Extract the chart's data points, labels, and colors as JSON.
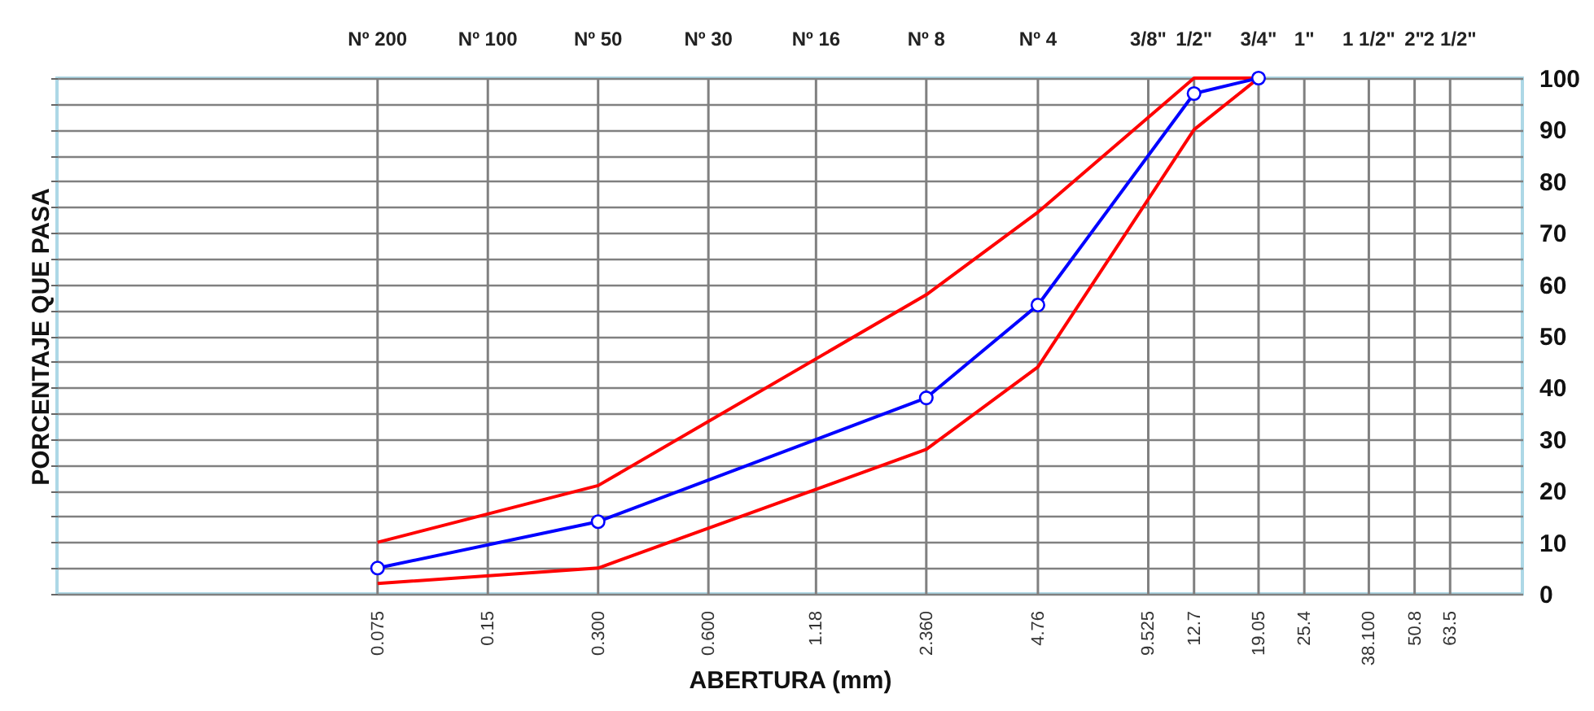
{
  "chart_data": {
    "type": "line",
    "ylabel": "PORCENTAJE QUE PASA",
    "xlabel": "ABERTURA (mm)",
    "log": "x",
    "grid": true,
    "xlim": [
      0.01,
      100
    ],
    "ylim": [
      0,
      100
    ],
    "x": [
      0.075,
      0.3,
      2.36,
      4.76,
      12.7,
      19.05
    ],
    "xticks": [
      0.075,
      0.15,
      {
        "value": 0.3,
        "label": "0.300"
      },
      {
        "value": 0.6,
        "label": "0.600"
      },
      1.18,
      {
        "value": 2.36,
        "label": "2.360"
      },
      4.76,
      9.525,
      12.7,
      19.05,
      25.4,
      {
        "value": 38.1,
        "label": "38.100"
      },
      50.8,
      63.5
    ],
    "annotations": [
      "Nº 200",
      "Nº 100",
      "Nº 50",
      "Nº 30",
      "Nº 16",
      "Nº 8",
      "Nº 4",
      "3/8\"",
      "1/2\"",
      "3/4\"",
      "1\"",
      "1 1/2\"",
      "2\"",
      "2 1/2\""
    ],
    "yticks": [
      0,
      {
        "value": 5,
        "label": null
      },
      10,
      {
        "value": 15,
        "label": null
      },
      20,
      {
        "value": 25,
        "label": null
      },
      30,
      {
        "value": 35,
        "label": null
      },
      40,
      {
        "value": 45,
        "label": null
      },
      50,
      {
        "value": 55,
        "label": null
      },
      60,
      {
        "value": 65,
        "label": null
      },
      70,
      {
        "value": 75,
        "label": null
      },
      80,
      {
        "value": 85,
        "label": null
      },
      90,
      {
        "value": 95,
        "label": null
      },
      100
    ],
    "series": [
      {
        "color": "#ff0000",
        "marker": "none",
        "values": [
          10,
          21,
          58,
          74,
          100,
          100
        ]
      },
      {
        "color": "#ff0000",
        "marker": "none",
        "values": [
          2,
          5,
          28,
          44,
          90,
          100
        ]
      },
      {
        "color": "#0000ff",
        "marker": "circle",
        "values": [
          5,
          14,
          38,
          56,
          97,
          100
        ]
      }
    ]
  }
}
